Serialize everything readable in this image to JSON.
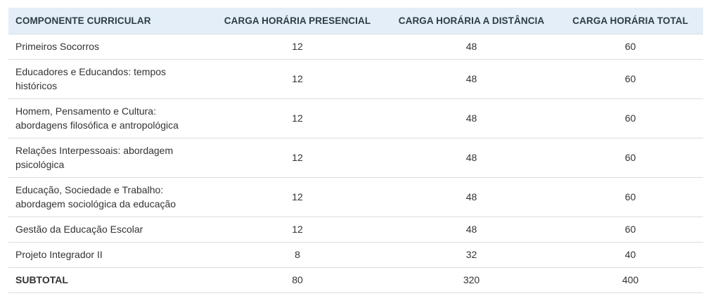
{
  "table": {
    "headers": [
      "COMPONENTE CURRICULAR",
      "CARGA HORÁRIA PRESENCIAL",
      "CARGA HORÁRIA A DISTÂNCIA",
      "CARGA HORÁRIA TOTAL"
    ],
    "rows": [
      [
        "Primeiros Socorros",
        "12",
        "48",
        "60"
      ],
      [
        "Educadores e Educandos: tempos históricos",
        "12",
        "48",
        "60"
      ],
      [
        "Homem, Pensamento e Cultura: abordagens filosófica e antropológica",
        "12",
        "48",
        "60"
      ],
      [
        "Relações Interpessoais: abordagem psicológica",
        "12",
        "48",
        "60"
      ],
      [
        "Educação, Sociedade e Trabalho: abordagem sociológica da educação",
        "12",
        "48",
        "60"
      ],
      [
        "Gestão da Educação Escolar",
        "12",
        "48",
        "60"
      ],
      [
        "Projeto Integrador II",
        "8",
        "32",
        "40"
      ],
      [
        "SUBTOTAL",
        "80",
        "320",
        "400"
      ]
    ]
  }
}
